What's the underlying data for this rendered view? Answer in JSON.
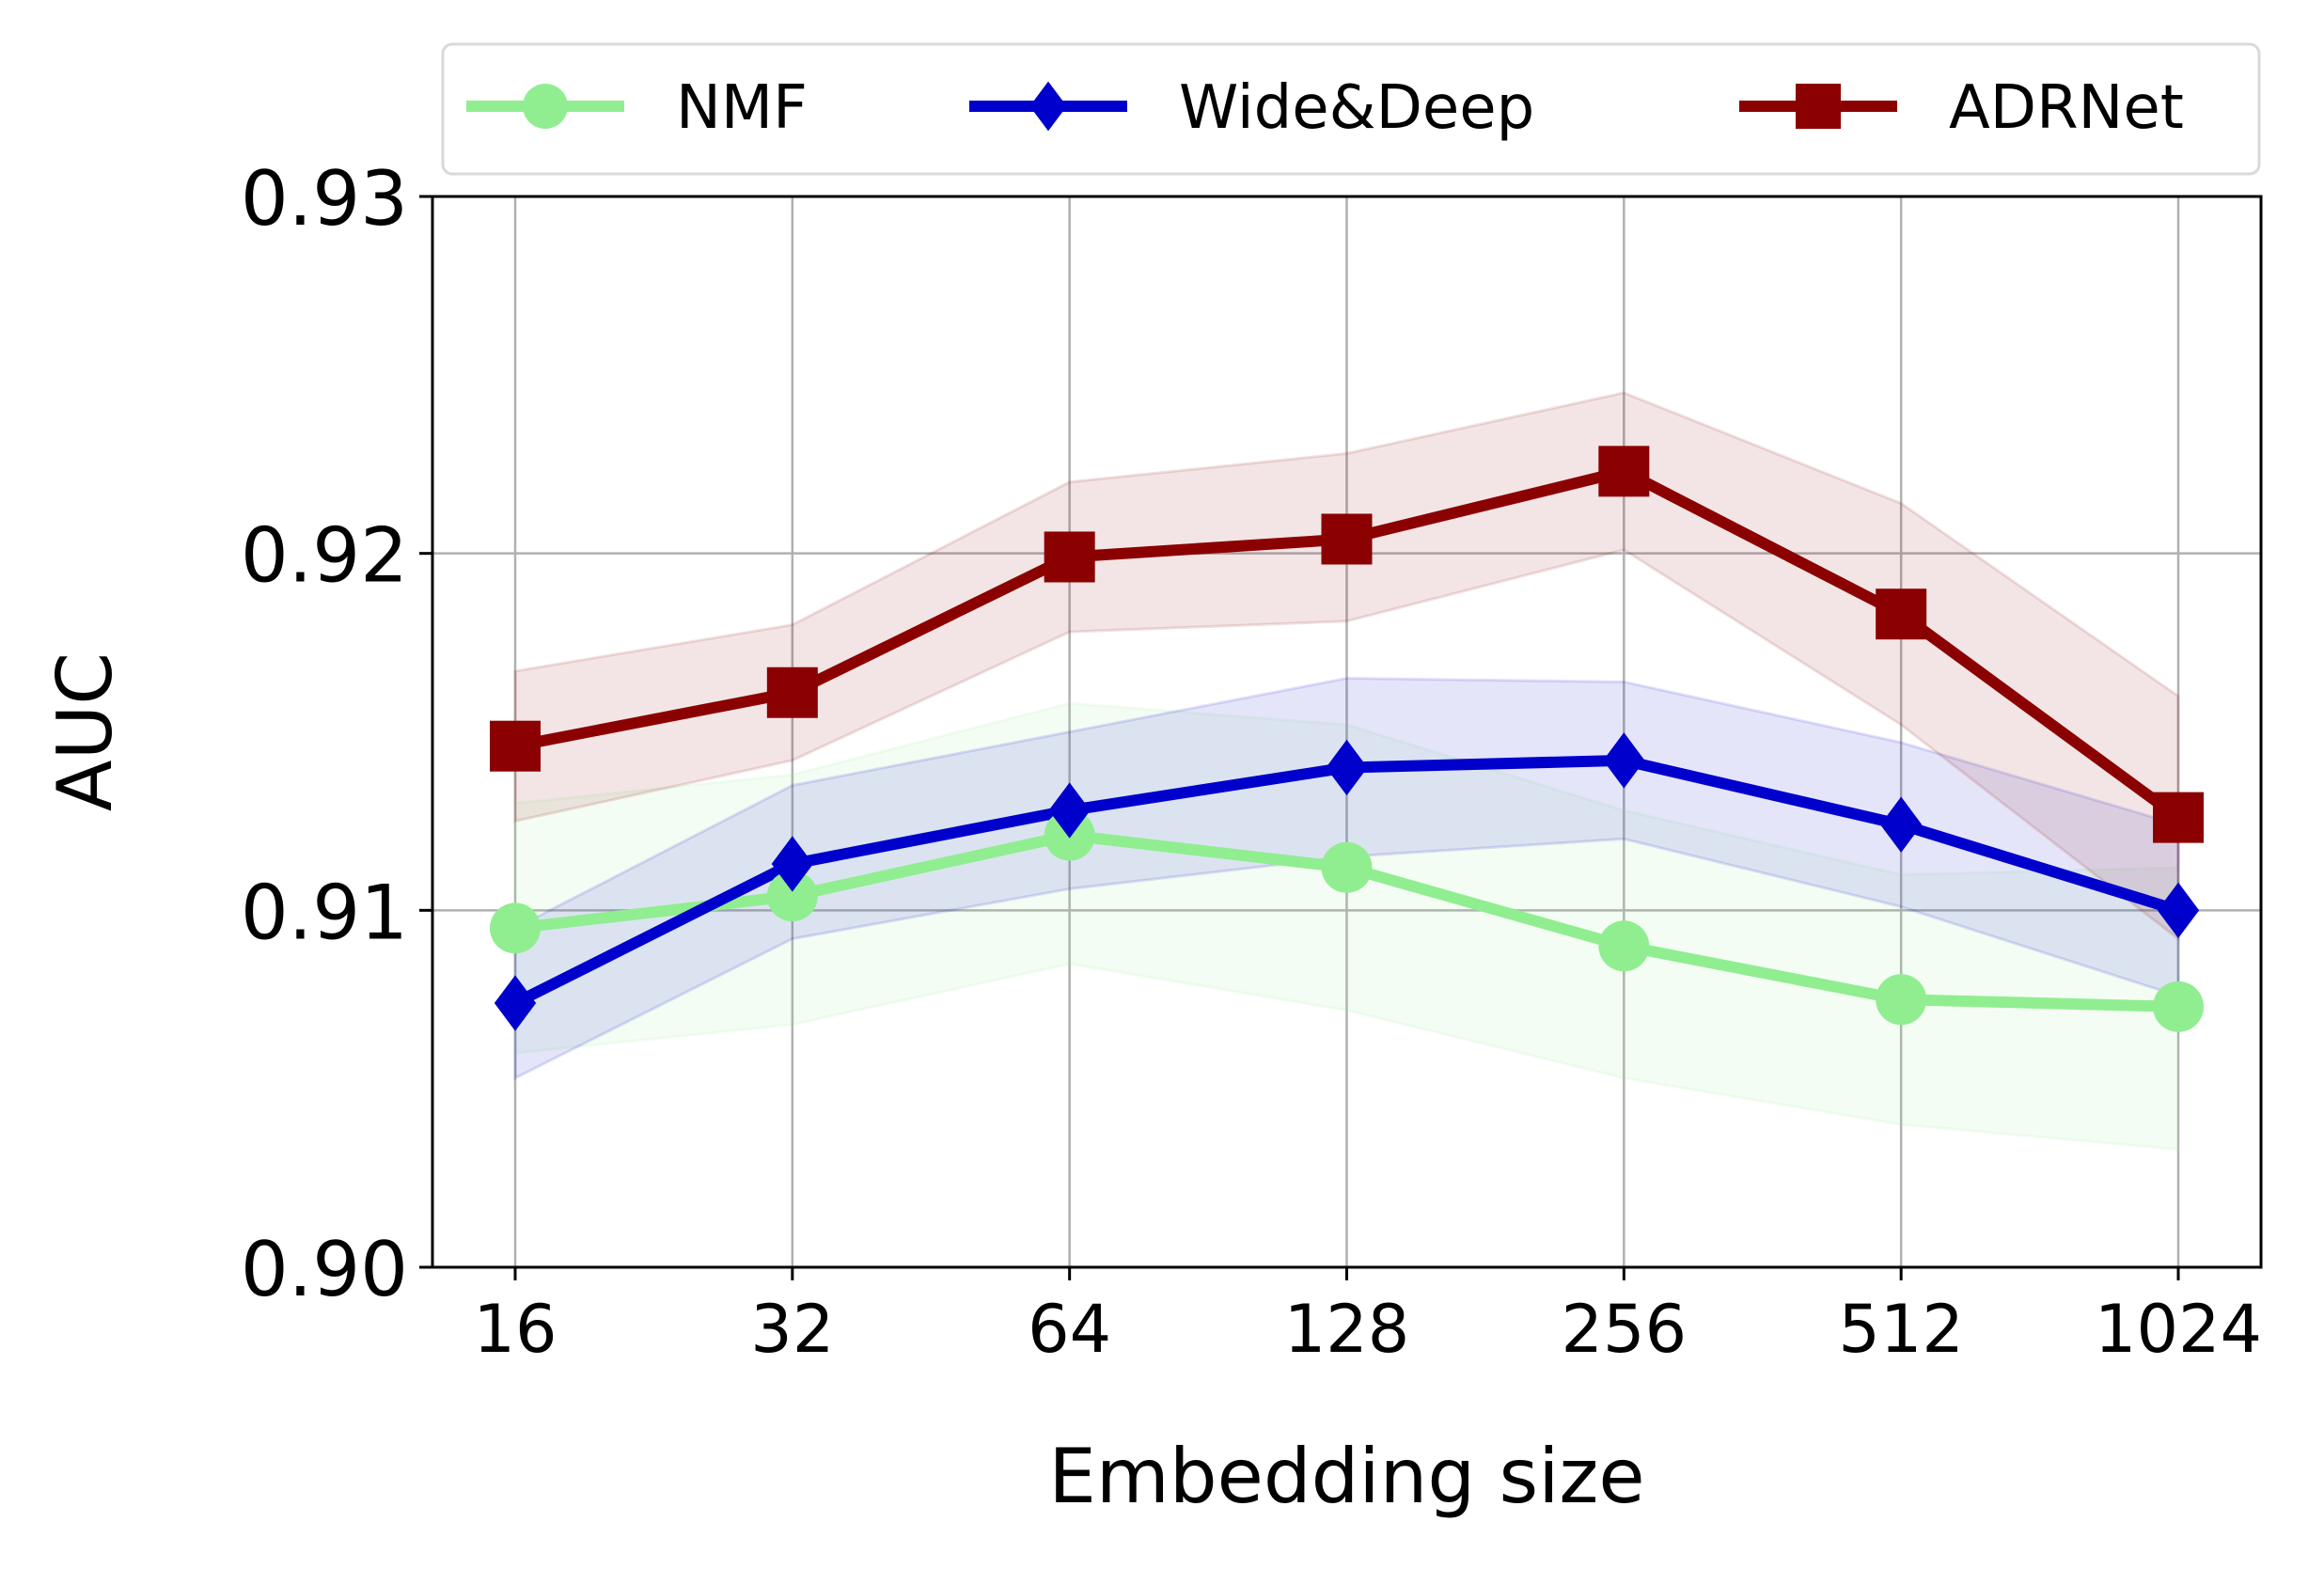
{
  "chart_data": {
    "type": "line",
    "title": "",
    "xlabel": "Embedding size",
    "ylabel": "AUC",
    "categories": [
      "16",
      "32",
      "64",
      "128",
      "256",
      "512",
      "1024"
    ],
    "ylim": [
      0.9,
      0.93
    ],
    "yticks": [
      "0.90",
      "0.91",
      "0.92",
      "0.93"
    ],
    "grid": true,
    "legend_position": "top",
    "series": [
      {
        "name": "NMF",
        "color": "#90ee90",
        "marker": "circle",
        "values": [
          0.9095,
          0.9104,
          0.9121,
          0.9112,
          0.909,
          0.9075,
          0.9073
        ],
        "band_upper": [
          0.913,
          0.9138,
          0.9158,
          0.9152,
          0.9128,
          0.911,
          0.9112
        ],
        "band_lower": [
          0.906,
          0.9068,
          0.9085,
          0.9072,
          0.9053,
          0.904,
          0.9033
        ]
      },
      {
        "name": "Wide&Deep",
        "color": "#0000cd",
        "marker": "diamond",
        "values": [
          0.9074,
          0.9113,
          0.9128,
          0.914,
          0.9142,
          0.9124,
          0.91
        ],
        "band_upper": [
          0.9095,
          0.9135,
          0.915,
          0.9165,
          0.9164,
          0.9147,
          0.9124
        ],
        "band_lower": [
          0.9053,
          0.9092,
          0.9106,
          0.9115,
          0.912,
          0.9101,
          0.9076
        ]
      },
      {
        "name": "ADRNet",
        "color": "#8b0000",
        "marker": "square",
        "values": [
          0.9146,
          0.9161,
          0.9199,
          0.9204,
          0.9223,
          0.9183,
          0.9126
        ],
        "band_upper": [
          0.9167,
          0.918,
          0.922,
          0.9228,
          0.9245,
          0.9214,
          0.916
        ],
        "band_lower": [
          0.9125,
          0.9142,
          0.9178,
          0.9181,
          0.9201,
          0.9152,
          0.9092
        ]
      }
    ]
  }
}
